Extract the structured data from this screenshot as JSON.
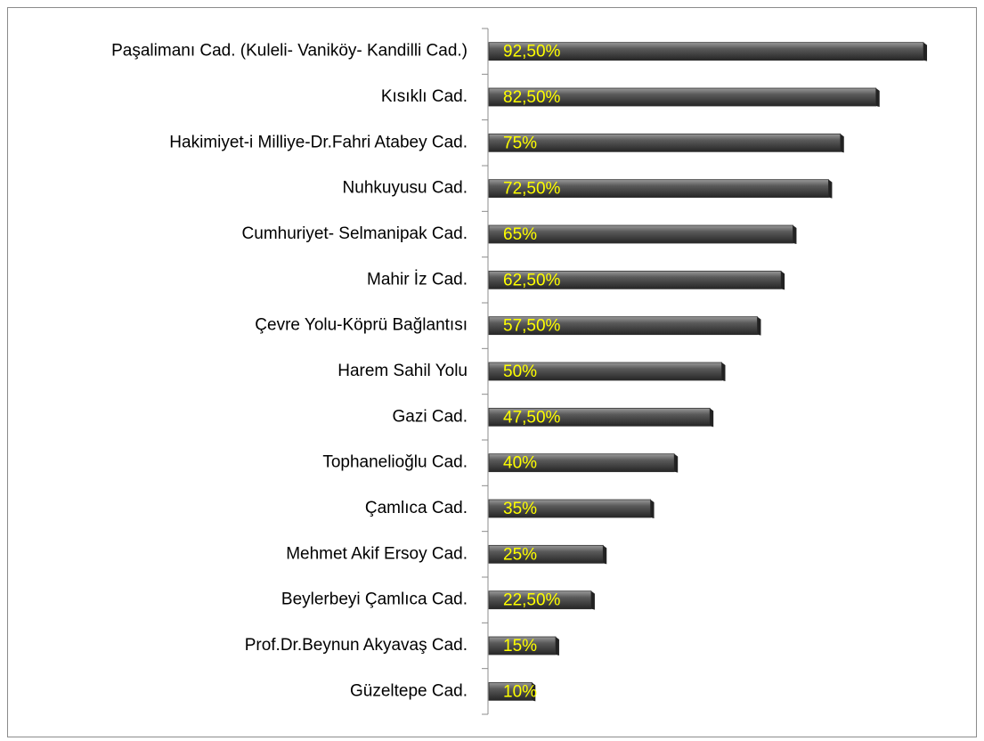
{
  "chart_data": {
    "type": "bar",
    "orientation": "horizontal",
    "categories": [
      "Paşalimanı Cad. (Kuleli- Vaniköy- Kandilli Cad.)",
      "Kısıklı Cad.",
      "Hakimiyet-i Milliye-Dr.Fahri Atabey Cad.",
      "Nuhkuyusu Cad.",
      "Cumhuriyet- Selmanipak Cad.",
      "Mahir İz Cad.",
      "Çevre Yolu-Köprü Bağlantısı",
      "Harem Sahil Yolu",
      "Gazi Cad.",
      "Tophanelioğlu Cad.",
      "Çamlıca Cad.",
      "Mehmet Akif Ersoy Cad.",
      "Beylerbeyi Çamlıca Cad.",
      "Prof.Dr.Beynun Akyavaş Cad.",
      "Güzeltepe Cad."
    ],
    "values": [
      92.5,
      82.5,
      75,
      72.5,
      65,
      62.5,
      57.5,
      50,
      47.5,
      40,
      35,
      25,
      22.5,
      15,
      10
    ],
    "value_labels": [
      "92,50%",
      "82,50%",
      "75%",
      "72,50%",
      "65%",
      "62,50%",
      "57,50%",
      "50%",
      "47,50%",
      "40%",
      "35%",
      "25%",
      "22,50%",
      "15%",
      "10%"
    ],
    "color": "#555555",
    "label_color": "#ffff00"
  }
}
